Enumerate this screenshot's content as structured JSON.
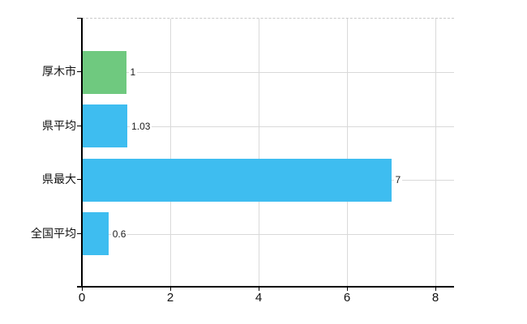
{
  "chart_data": {
    "type": "bar",
    "orientation": "horizontal",
    "title": "",
    "xlabel": "",
    "ylabel": "",
    "categories": [
      "厚木市",
      "県平均",
      "県最大",
      "全国平均"
    ],
    "values": [
      1,
      1.03,
      7,
      0.6
    ],
    "value_labels": [
      "1",
      "1.03",
      "7",
      "0.6"
    ],
    "bar_colors": [
      "#6fc97f",
      "#3ebdf0",
      "#3ebdf0",
      "#3ebdf0"
    ],
    "xlim": [
      0,
      8
    ],
    "x_ticks": [
      0,
      2,
      4,
      6,
      8
    ],
    "x_tick_labels": [
      "0",
      "2",
      "4",
      "6",
      "8"
    ],
    "grid": true,
    "legend": false,
    "colors": {
      "green_bar": "#6fc97f",
      "blue_bar": "#3ebdf0",
      "gridline": "#d9d9d9",
      "axis": "#000000",
      "plot_top_border": "#c9c9c9",
      "label_text": "#111111",
      "background": "#ffffff"
    }
  }
}
